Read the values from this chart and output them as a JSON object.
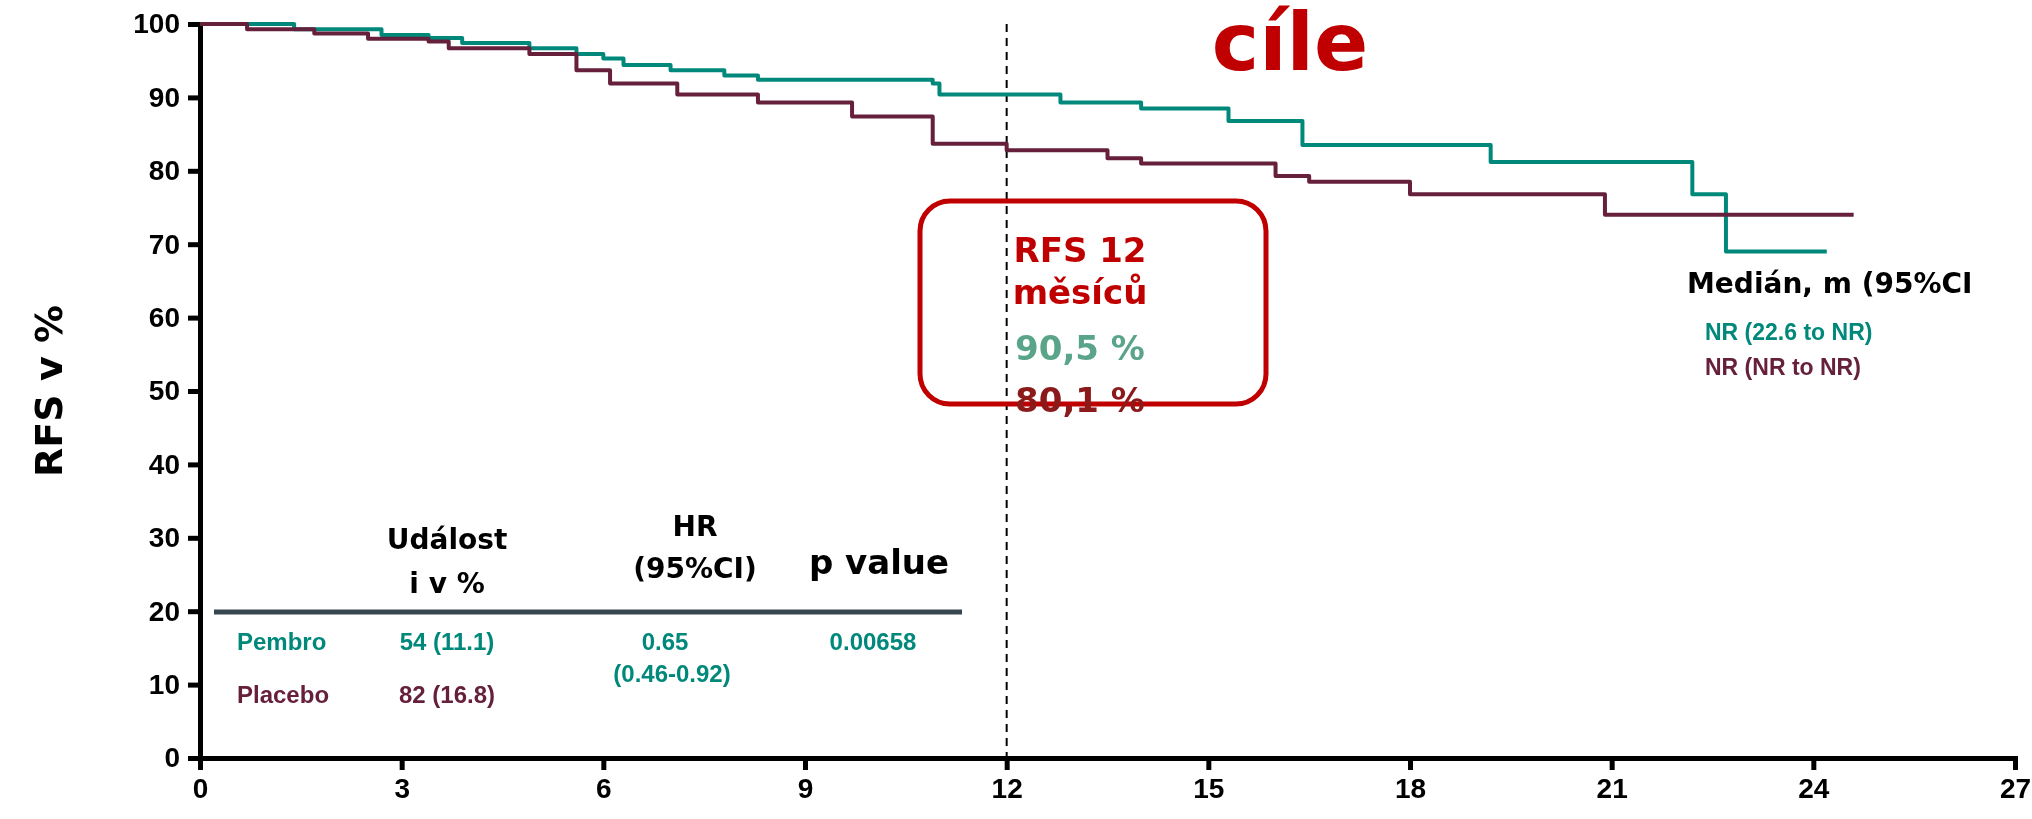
{
  "chart_data": {
    "type": "step",
    "ylabel": "RFS v %",
    "xlim": [
      0,
      27
    ],
    "xticks": [
      0,
      3,
      6,
      9,
      12,
      15,
      18,
      21,
      24,
      27
    ],
    "ylim": [
      0,
      100
    ],
    "yticks": [
      0,
      10,
      20,
      30,
      40,
      50,
      60,
      70,
      80,
      90,
      100
    ],
    "grid": false,
    "legend": false,
    "marker": "none",
    "line_style": "solid",
    "series": [
      {
        "name": "Pembro",
        "color": "#00897b",
        "x": [
          0,
          1.4,
          2.7,
          3.4,
          3.9,
          4.9,
          5.6,
          6.0,
          6.3,
          7.0,
          7.8,
          8.3,
          10.9,
          11.0,
          12.8,
          14.0,
          15.3,
          16.4,
          19.2,
          22.2,
          22.7,
          24.2
        ],
        "values": [
          100,
          99.3,
          98.5,
          98.1,
          97.4,
          96.7,
          95.9,
          95.3,
          94.4,
          93.7,
          93.0,
          92.4,
          91.9,
          90.4,
          89.3,
          88.5,
          86.8,
          83.5,
          81.2,
          76.8,
          69,
          69
        ]
      },
      {
        "name": "Placebo",
        "color": "#66203b",
        "x": [
          0,
          0.7,
          1.7,
          2.5,
          3.4,
          3.7,
          4.9,
          5.6,
          6.1,
          7.1,
          8.3,
          9.7,
          10.9,
          12.0,
          13.5,
          14.0,
          16.0,
          16.5,
          18.0,
          20.9,
          24.6
        ],
        "values": [
          100,
          99.3,
          98.7,
          98.0,
          97.6,
          96.7,
          95.9,
          93.7,
          91.9,
          90.4,
          89.3,
          87.4,
          83.7,
          82.8,
          81.7,
          81.0,
          79.3,
          78.5,
          76.8,
          74.0,
          74.0
        ]
      }
    ],
    "ref_lines": [
      {
        "axis": "x",
        "value": 12,
        "line_style": "dashed",
        "color": "#000000"
      }
    ],
    "annotations": [
      "cíle",
      "RFS 12",
      "měsíců",
      "90,5 %",
      "80,1 %",
      "Medián, m (95%CI",
      "NR (22.6 to NR)",
      "NR (NR to NR)",
      "Událost",
      "i v %",
      "HR",
      "(95%CI)",
      "p value",
      "54 (11.1)",
      "82 (16.8)",
      "0.65",
      "(0.46-0.92)",
      "0.00658"
    ]
  }
}
